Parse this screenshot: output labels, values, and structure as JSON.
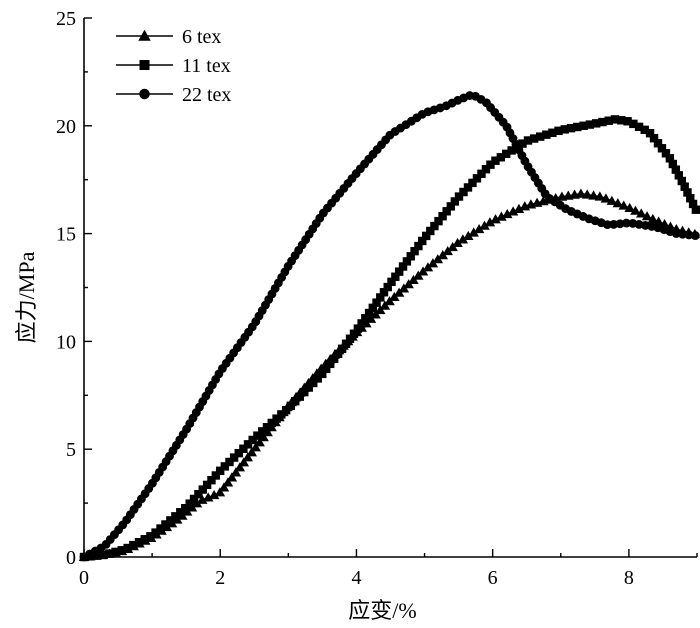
{
  "chart_data": {
    "type": "line",
    "title": "",
    "xlabel": "应变/%",
    "ylabel": "应力/MPa",
    "xlim": [
      0,
      9
    ],
    "ylim": [
      0,
      25
    ],
    "xticks": [
      0,
      2,
      4,
      6,
      8
    ],
    "yticks": [
      0,
      5,
      10,
      15,
      20,
      25
    ],
    "xtick_labels": [
      "0",
      "2",
      "4",
      "6",
      "8"
    ],
    "ytick_labels": [
      "0",
      "5",
      "10",
      "15",
      "20",
      "25"
    ],
    "legend_position": "top-left",
    "series": [
      {
        "name": "6 tex",
        "marker": "triangle",
        "points": [
          [
            0,
            0
          ],
          [
            0.3,
            0.1
          ],
          [
            0.6,
            0.3
          ],
          [
            1.0,
            0.9
          ],
          [
            1.4,
            1.8
          ],
          [
            1.7,
            2.6
          ],
          [
            1.9,
            2.85
          ],
          [
            2.0,
            3.0
          ],
          [
            2.5,
            5.0
          ],
          [
            3.0,
            7.0
          ],
          [
            3.5,
            8.8
          ],
          [
            4.0,
            10.4
          ],
          [
            4.5,
            11.9
          ],
          [
            5.0,
            13.3
          ],
          [
            5.5,
            14.6
          ],
          [
            6.0,
            15.6
          ],
          [
            6.5,
            16.3
          ],
          [
            7.0,
            16.7
          ],
          [
            7.3,
            16.85
          ],
          [
            7.6,
            16.7
          ],
          [
            8.0,
            16.2
          ],
          [
            8.4,
            15.6
          ],
          [
            8.7,
            15.2
          ],
          [
            9.0,
            14.95
          ]
        ]
      },
      {
        "name": "11 tex",
        "marker": "square",
        "points": [
          [
            0,
            0
          ],
          [
            0.3,
            0.1
          ],
          [
            0.6,
            0.35
          ],
          [
            1.0,
            1.0
          ],
          [
            1.5,
            2.3
          ],
          [
            2.0,
            4.0
          ],
          [
            2.5,
            5.5
          ],
          [
            3.0,
            6.9
          ],
          [
            3.5,
            8.5
          ],
          [
            4.0,
            10.5
          ],
          [
            4.5,
            12.7
          ],
          [
            5.0,
            14.8
          ],
          [
            5.5,
            16.7
          ],
          [
            6.0,
            18.3
          ],
          [
            6.5,
            19.3
          ],
          [
            7.0,
            19.8
          ],
          [
            7.5,
            20.1
          ],
          [
            7.8,
            20.3
          ],
          [
            8.0,
            20.2
          ],
          [
            8.3,
            19.7
          ],
          [
            8.6,
            18.5
          ],
          [
            8.8,
            17.3
          ],
          [
            9.0,
            16.0
          ]
        ]
      },
      {
        "name": "22 tex",
        "marker": "circle",
        "points": [
          [
            0,
            0
          ],
          [
            0.3,
            0.5
          ],
          [
            0.6,
            1.6
          ],
          [
            1.0,
            3.4
          ],
          [
            1.5,
            5.9
          ],
          [
            2.0,
            8.6
          ],
          [
            2.5,
            10.8
          ],
          [
            3.0,
            13.5
          ],
          [
            3.5,
            15.9
          ],
          [
            4.0,
            17.8
          ],
          [
            4.5,
            19.6
          ],
          [
            5.0,
            20.6
          ],
          [
            5.3,
            20.9
          ],
          [
            5.5,
            21.2
          ],
          [
            5.7,
            21.45
          ],
          [
            5.9,
            21.1
          ],
          [
            6.2,
            20.0
          ],
          [
            6.5,
            18.2
          ],
          [
            6.8,
            16.7
          ],
          [
            7.1,
            16.1
          ],
          [
            7.4,
            15.7
          ],
          [
            7.7,
            15.4
          ],
          [
            8.0,
            15.5
          ],
          [
            8.4,
            15.3
          ],
          [
            8.7,
            15.0
          ],
          [
            9.0,
            14.9
          ]
        ]
      }
    ]
  }
}
